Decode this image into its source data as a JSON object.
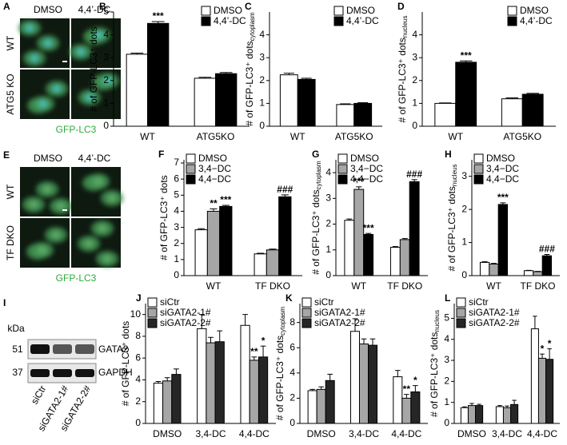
{
  "chart_data": [
    {
      "type": "bar",
      "panel": "B",
      "ylabel": "# of GFP-LC3⁺ dots",
      "categories": [
        "WT",
        "ATG5KO"
      ],
      "ylim": [
        0,
        5
      ],
      "yticks": [
        0,
        1,
        2,
        3,
        4,
        5
      ],
      "legend": "upper right",
      "series": [
        {
          "name": "DMSO",
          "color": "#ffffff",
          "values": [
            3.15,
            2.1
          ],
          "errors": [
            0.05,
            0.04
          ],
          "annotations": [
            null,
            null
          ]
        },
        {
          "name": "4,4’-DC",
          "color": "#000000",
          "values": [
            4.5,
            2.3
          ],
          "errors": [
            0.08,
            0.05
          ],
          "annotations": [
            "***",
            null
          ]
        }
      ]
    },
    {
      "type": "bar",
      "panel": "C",
      "ylabel": "# of GFP-LC3⁺ dots",
      "ylabel_sub": "cytoplasm",
      "categories": [
        "WT",
        "ATG5KO"
      ],
      "ylim": [
        0,
        5
      ],
      "yticks": [
        0,
        1,
        2,
        3,
        4
      ],
      "legend": "upper right",
      "series": [
        {
          "name": "DMSO",
          "color": "#ffffff",
          "values": [
            2.25,
            0.95
          ],
          "errors": [
            0.07,
            0.03
          ],
          "annotations": [
            null,
            null
          ]
        },
        {
          "name": "4,4’-DC",
          "color": "#000000",
          "values": [
            2.05,
            1.0
          ],
          "errors": [
            0.05,
            0.03
          ],
          "annotations": [
            null,
            null
          ]
        }
      ]
    },
    {
      "type": "bar",
      "panel": "D",
      "ylabel": "# of GFP-LC3⁺ dots",
      "ylabel_sub": "nucleus",
      "categories": [
        "WT",
        "ATG5KO"
      ],
      "ylim": [
        0,
        5
      ],
      "yticks": [
        0,
        1,
        2,
        3,
        4
      ],
      "legend": "upper right",
      "series": [
        {
          "name": "DMSO",
          "color": "#ffffff",
          "values": [
            1.0,
            1.2
          ],
          "errors": [
            0.02,
            0.04
          ],
          "annotations": [
            null,
            null
          ]
        },
        {
          "name": "4,4’-DC",
          "color": "#000000",
          "values": [
            2.8,
            1.4
          ],
          "errors": [
            0.06,
            0.04
          ],
          "annotations": [
            "***",
            null
          ]
        }
      ]
    },
    {
      "type": "bar",
      "panel": "F",
      "ylabel": "# of GFP-LC3⁺ dots",
      "categories": [
        "WT",
        "TF DKO"
      ],
      "ylim": [
        0,
        7.2
      ],
      "yticks": [
        0,
        1,
        2,
        3,
        4,
        5,
        6,
        7
      ],
      "legend": "upper left",
      "series": [
        {
          "name": "DMSO",
          "color": "#ffffff",
          "values": [
            2.85,
            1.35
          ],
          "errors": [
            0.07,
            0.04
          ],
          "annotations": [
            null,
            null
          ]
        },
        {
          "name": "3,4−DC",
          "color": "#a6a6a6",
          "values": [
            4.0,
            1.6
          ],
          "errors": [
            0.15,
            0.05
          ],
          "annotations": [
            "**",
            null
          ]
        },
        {
          "name": "4,4−DC",
          "color": "#000000",
          "values": [
            4.3,
            4.9
          ],
          "errors": [
            0.07,
            0.12
          ],
          "annotations": [
            "***",
            "###"
          ]
        }
      ]
    },
    {
      "type": "bar",
      "panel": "G",
      "ylabel": "# of GFP-LC3⁺ dots",
      "ylabel_sub": "cytoplasm",
      "categories": [
        "WT",
        "TF DKO"
      ],
      "ylim": [
        0,
        4.5
      ],
      "yticks": [
        0,
        1,
        2,
        3,
        4
      ],
      "legend": "upper left",
      "series": [
        {
          "name": "DMSO",
          "color": "#ffffff",
          "values": [
            2.15,
            1.1
          ],
          "errors": [
            0.05,
            0.03
          ],
          "annotations": [
            null,
            null
          ]
        },
        {
          "name": "3,4−DC",
          "color": "#a6a6a6",
          "values": [
            3.35,
            1.4
          ],
          "errors": [
            0.1,
            0.04
          ],
          "annotations": [
            "***",
            null
          ]
        },
        {
          "name": "4,4−DC",
          "color": "#000000",
          "values": [
            1.6,
            3.65
          ],
          "errors": [
            0.04,
            0.08
          ],
          "annotations": [
            "***",
            "###"
          ]
        }
      ]
    },
    {
      "type": "bar",
      "panel": "H",
      "ylabel": "# of GFP-LC3⁺ dots",
      "ylabel_sub": "nucleus",
      "categories": [
        "WT",
        "TF DKO"
      ],
      "ylim": [
        0,
        3.5
      ],
      "yticks": [
        0,
        1,
        2,
        3
      ],
      "legend": "upper left",
      "series": [
        {
          "name": "DMSO",
          "color": "#ffffff",
          "values": [
            0.4,
            0.15
          ],
          "errors": [
            0.02,
            0.01
          ],
          "annotations": [
            null,
            null
          ]
        },
        {
          "name": "3,4−DC",
          "color": "#a6a6a6",
          "values": [
            0.35,
            0.12
          ],
          "errors": [
            0.02,
            0.01
          ],
          "annotations": [
            null,
            null
          ]
        },
        {
          "name": "4,4−DC",
          "color": "#000000",
          "values": [
            2.15,
            0.6
          ],
          "errors": [
            0.05,
            0.04
          ],
          "annotations": [
            "***",
            "###"
          ]
        }
      ]
    },
    {
      "type": "bar",
      "panel": "J",
      "ylabel": "# of GFP-LC3⁺ dots",
      "categories": [
        "DMSO",
        "3,4-DC",
        "4,4-DC"
      ],
      "ylim": [
        0,
        11
      ],
      "yticks": [
        0,
        2,
        4,
        6,
        8,
        10
      ],
      "legend": "upper left",
      "series": [
        {
          "name": "siCtr",
          "color": "#ffffff",
          "values": [
            3.7,
            8.7,
            9.0
          ],
          "errors": [
            0.15,
            1.3,
            1.0
          ],
          "annotations": [
            null,
            null,
            null
          ]
        },
        {
          "name": "siGATA2-1#",
          "color": "#a6a6a6",
          "values": [
            3.9,
            7.4,
            5.8
          ],
          "errors": [
            0.3,
            0.5,
            0.3
          ],
          "annotations": [
            null,
            null,
            "**"
          ]
        },
        {
          "name": "siGATA2-2#",
          "color": "#262626",
          "values": [
            4.5,
            7.5,
            6.1
          ],
          "errors": [
            0.5,
            1.0,
            1.0
          ],
          "annotations": [
            null,
            null,
            "*"
          ]
        }
      ]
    },
    {
      "type": "bar",
      "panel": "K",
      "ylabel": "# of GFP-LC3⁺ dots",
      "ylabel_sub": "cytoplasm",
      "categories": [
        "DMSO",
        "3,4-DC",
        "4,4-DC"
      ],
      "ylim": [
        0,
        9.5
      ],
      "yticks": [
        0,
        2,
        4,
        6,
        8
      ],
      "legend": "upper left",
      "series": [
        {
          "name": "siCtr",
          "color": "#ffffff",
          "values": [
            2.6,
            7.3,
            3.7
          ],
          "errors": [
            0.1,
            1.0,
            0.5
          ],
          "annotations": [
            null,
            null,
            null
          ]
        },
        {
          "name": "siGATA2-1#",
          "color": "#a6a6a6",
          "values": [
            2.7,
            6.3,
            2.0
          ],
          "errors": [
            0.2,
            0.4,
            0.3
          ],
          "annotations": [
            null,
            null,
            "**"
          ]
        },
        {
          "name": "siGATA2-2#",
          "color": "#262626",
          "values": [
            3.4,
            6.2,
            2.5
          ],
          "errors": [
            0.5,
            0.5,
            0.5
          ],
          "annotations": [
            null,
            null,
            "*"
          ]
        }
      ]
    },
    {
      "type": "bar",
      "panel": "L",
      "ylabel": "# of GFP-LC3⁺ dots",
      "ylabel_sub": "nucleus",
      "categories": [
        "DMSO",
        "3,4-DC",
        "4,4-DC"
      ],
      "ylim": [
        0,
        5.7
      ],
      "yticks": [
        0,
        1,
        2,
        3,
        4,
        5
      ],
      "legend": "upper left",
      "series": [
        {
          "name": "siCtr",
          "color": "#ffffff",
          "values": [
            0.75,
            0.8,
            4.5
          ],
          "errors": [
            0.04,
            0.05,
            0.6
          ],
          "annotations": [
            null,
            null,
            null
          ]
        },
        {
          "name": "siGATA2-1#",
          "color": "#a6a6a6",
          "values": [
            0.85,
            0.75,
            3.1
          ],
          "errors": [
            0.1,
            0.08,
            0.2
          ],
          "annotations": [
            null,
            null,
            "*"
          ]
        },
        {
          "name": "siGATA2-2#",
          "color": "#262626",
          "values": [
            0.85,
            0.9,
            3.05
          ],
          "errors": [
            0.06,
            0.2,
            0.5
          ],
          "annotations": [
            null,
            null,
            "*"
          ]
        }
      ]
    }
  ],
  "figure_panels": [
    {
      "letter": "A",
      "columns": [
        "DMSO",
        "4,4’-DC"
      ],
      "rows": [
        "WT",
        "ATG5 KO"
      ],
      "caption": "GFP-LC3"
    },
    {
      "letter": "E",
      "columns": [
        "DMSO",
        "4,4’-DC"
      ],
      "rows": [
        "WT",
        "TF DKO"
      ],
      "caption": "GFP-LC3"
    },
    {
      "letter": "I",
      "unit": "kDa",
      "markers": [
        "51",
        "37"
      ],
      "bands": [
        "GATA2",
        "GAPDH"
      ],
      "lanes": [
        "siCtr",
        "siGATA2-1#",
        "siGATA2-2#"
      ]
    }
  ]
}
